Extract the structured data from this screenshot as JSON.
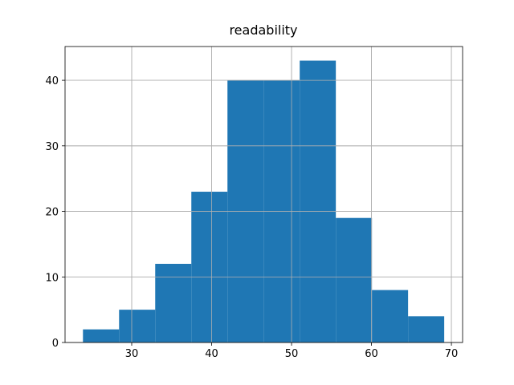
{
  "chart_data": {
    "type": "histogram",
    "title": "readability",
    "bins": [
      23.9,
      28.42,
      32.94,
      37.46,
      41.98,
      46.5,
      51.02,
      55.54,
      60.06,
      64.58,
      69.1
    ],
    "values": [
      2,
      5,
      12,
      23,
      40,
      40,
      43,
      19,
      8,
      4
    ],
    "color": "#1f77b4",
    "xlim": [
      21.66,
      71.4
    ],
    "xticks": [
      30,
      40,
      50,
      60,
      70
    ],
    "ylim": [
      0,
      45.15
    ],
    "yticks": [
      0,
      10,
      20,
      30,
      40
    ],
    "grid": true
  }
}
